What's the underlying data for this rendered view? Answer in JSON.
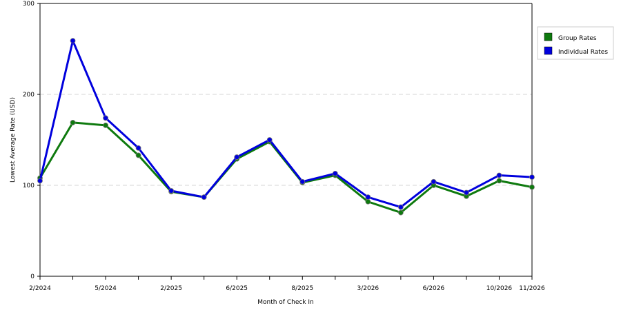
{
  "chart_data": {
    "type": "line",
    "title": "",
    "xlabel": "Month of Check In",
    "ylabel": "Lowest Average Rate (USD)",
    "ylim": [
      0,
      300
    ],
    "yticks": [
      0,
      100,
      200,
      300
    ],
    "grid": "horizontal dashed",
    "legend_position": "right",
    "x": [
      "2/2024",
      "",
      "5/2024",
      "",
      "2/2025",
      "",
      "6/2025",
      "",
      "8/2025",
      "",
      "3/2026",
      "",
      "6/2026",
      "",
      "10/2026",
      "11/2026"
    ],
    "series": [
      {
        "name": "Group Rates",
        "color": "#0e7a0e",
        "values": [
          108,
          169,
          166,
          133,
          93,
          87,
          129,
          148,
          103,
          111,
          82,
          70,
          100,
          88,
          105,
          98
        ]
      },
      {
        "name": "Individual Rates",
        "color": "#0000dd",
        "values": [
          105,
          259,
          174,
          141,
          94,
          87,
          131,
          150,
          104,
          113,
          87,
          76,
          104,
          92,
          111,
          109
        ]
      }
    ]
  }
}
